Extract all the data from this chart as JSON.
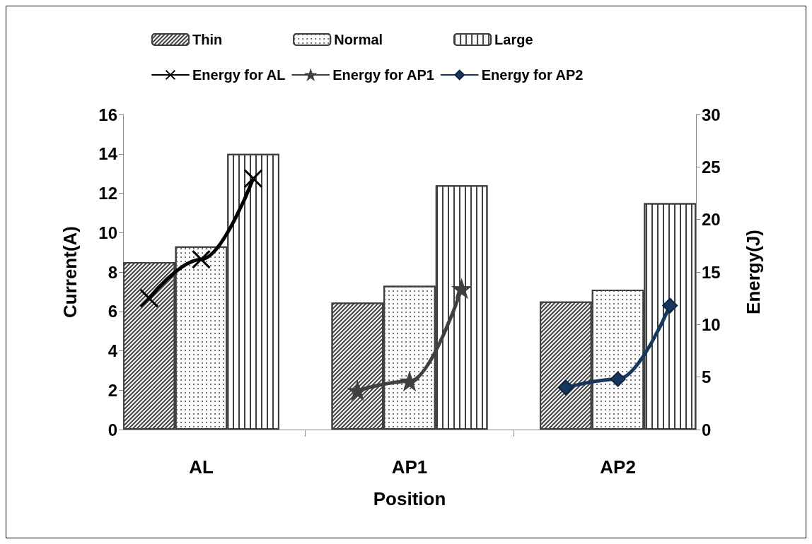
{
  "chart_data": {
    "type": "bar",
    "xlabel": "Position",
    "ylabel": "Current(A)",
    "y2label": "Energy(J)",
    "categories": [
      null,
      "AL",
      null,
      null,
      null,
      "AP1",
      null,
      null,
      null,
      "AP2",
      null
    ],
    "series": [
      {
        "name": "Thin",
        "color": "#ffffff",
        "values": [
          8.5,
          null,
          null,
          null,
          6.45,
          null,
          null,
          null,
          6.5,
          null,
          null
        ]
      },
      {
        "name": "Normal",
        "color": "#ffffff",
        "values": [
          null,
          9.3,
          null,
          null,
          null,
          7.3,
          null,
          null,
          null,
          7.1,
          null
        ]
      },
      {
        "name": "Large",
        "color": "#ffffff",
        "values": [
          null,
          null,
          14,
          null,
          null,
          null,
          12.4,
          null,
          null,
          null,
          11.5
        ]
      },
      {
        "name": "Energy for AL",
        "type": "line",
        "axis": "y2",
        "color": "#000000",
        "marker": "cross",
        "values": [
          12.5,
          16.2,
          23.9,
          null,
          null,
          null,
          null,
          null,
          null,
          null,
          null
        ]
      },
      {
        "name": "Energy for AP1",
        "type": "line",
        "axis": "y2",
        "color": "#404040",
        "marker": "star",
        "values": [
          null,
          null,
          null,
          null,
          3.7,
          4.6,
          13.4,
          null,
          null,
          null,
          null
        ]
      },
      {
        "name": "Energy for AP2",
        "type": "line",
        "axis": "y2",
        "color": "#17375e",
        "marker": "diamond",
        "values": [
          null,
          null,
          null,
          null,
          null,
          null,
          null,
          null,
          4.0,
          4.8,
          11.8
        ]
      }
    ],
    "ylim": [
      0,
      16
    ],
    "yticks": [
      0,
      2,
      4,
      6,
      8,
      10,
      12,
      14,
      16
    ],
    "y2lim": [
      0,
      30
    ],
    "y2ticks": [
      0,
      5,
      10,
      15,
      20,
      25,
      30
    ],
    "legend": "top"
  }
}
